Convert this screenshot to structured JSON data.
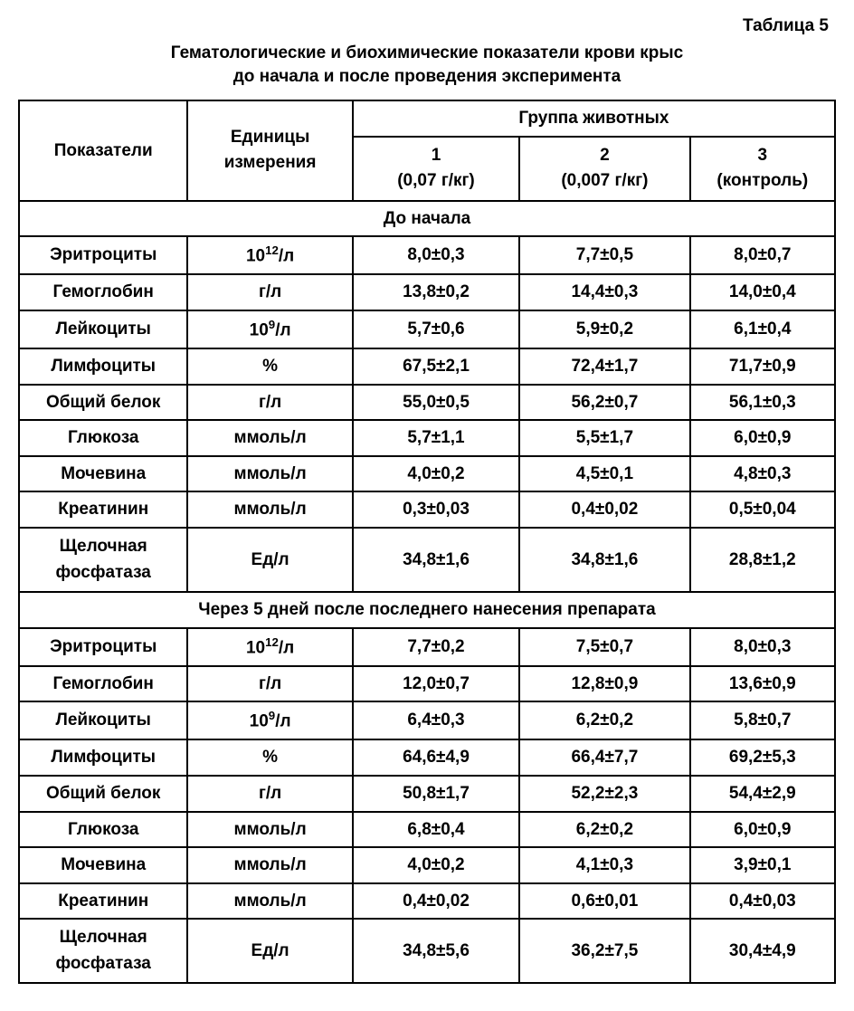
{
  "table_label": "Таблица 5",
  "title_line1": "Гематологические и биохимические показатели крови крыс",
  "title_line2": "до начала и после проведения эксперимента",
  "headers": {
    "indicators": "Показатели",
    "units": "Единицы измерения",
    "group": "Группа животных",
    "g1_num": "1",
    "g1_dose": "(0,07 г/кг)",
    "g2_num": "2",
    "g2_dose": "(0,007 г/кг)",
    "g3_num": "3",
    "g3_dose": "(контроль)"
  },
  "sections": {
    "before": "До начала",
    "after": "Через 5 дней после последнего нанесения препарата"
  },
  "param_names": {
    "eryth": "Эритроциты",
    "hemo": "Гемоглобин",
    "leuk": "Лейкоциты",
    "lymph": "Лимфоциты",
    "protein": "Общий белок",
    "glucose": "Глюкоза",
    "urea": "Мочевина",
    "creat": "Креатинин",
    "alk1": "Щелочная",
    "alk2": "фосфатаза"
  },
  "unit_parts": {
    "ten": "10",
    "exp12": "12",
    "exp9": "9",
    "per_l": "/л",
    "g_l": "г/л",
    "percent": "%",
    "mmol_l": "ммоль/л",
    "ed_l": "Ед/л"
  },
  "before_vals": {
    "eryth": {
      "g1": "8,0±0,3",
      "g2": "7,7±0,5",
      "g3": "8,0±0,7"
    },
    "hemo": {
      "g1": "13,8±0,2",
      "g2": "14,4±0,3",
      "g3": "14,0±0,4"
    },
    "leuk": {
      "g1": "5,7±0,6",
      "g2": "5,9±0,2",
      "g3": "6,1±0,4"
    },
    "lymph": {
      "g1": "67,5±2,1",
      "g2": "72,4±1,7",
      "g3": "71,7±0,9"
    },
    "protein": {
      "g1": "55,0±0,5",
      "g2": "56,2±0,7",
      "g3": "56,1±0,3"
    },
    "glucose": {
      "g1": "5,7±1,1",
      "g2": "5,5±1,7",
      "g3": "6,0±0,9"
    },
    "urea": {
      "g1": "4,0±0,2",
      "g2": "4,5±0,1",
      "g3": "4,8±0,3"
    },
    "creat": {
      "g1": "0,3±0,03",
      "g2": "0,4±0,02",
      "g3": "0,5±0,04"
    },
    "alk": {
      "g1": "34,8±1,6",
      "g2": "34,8±1,6",
      "g3": "28,8±1,2"
    }
  },
  "after_vals": {
    "eryth": {
      "g1": "7,7±0,2",
      "g2": "7,5±0,7",
      "g3": "8,0±0,3"
    },
    "hemo": {
      "g1": "12,0±0,7",
      "g2": "12,8±0,9",
      "g3": "13,6±0,9"
    },
    "leuk": {
      "g1": "6,4±0,3",
      "g2": "6,2±0,2",
      "g3": "5,8±0,7"
    },
    "lymph": {
      "g1": "64,6±4,9",
      "g2": "66,4±7,7",
      "g3": "69,2±5,3"
    },
    "protein": {
      "g1": "50,8±1,7",
      "g2": "52,2±2,3",
      "g3": "54,4±2,9"
    },
    "glucose": {
      "g1": "6,8±0,4",
      "g2": "6,2±0,2",
      "g3": "6,0±0,9"
    },
    "urea": {
      "g1": "4,0±0,2",
      "g2": "4,1±0,3",
      "g3": "3,9±0,1"
    },
    "creat": {
      "g1": "0,4±0,02",
      "g2": "0,6±0,01",
      "g3": "0,4±0,03"
    },
    "alk": {
      "g1": "34,8±5,6",
      "g2": "36,2±7,5",
      "g3": "30,4±4,9"
    }
  }
}
